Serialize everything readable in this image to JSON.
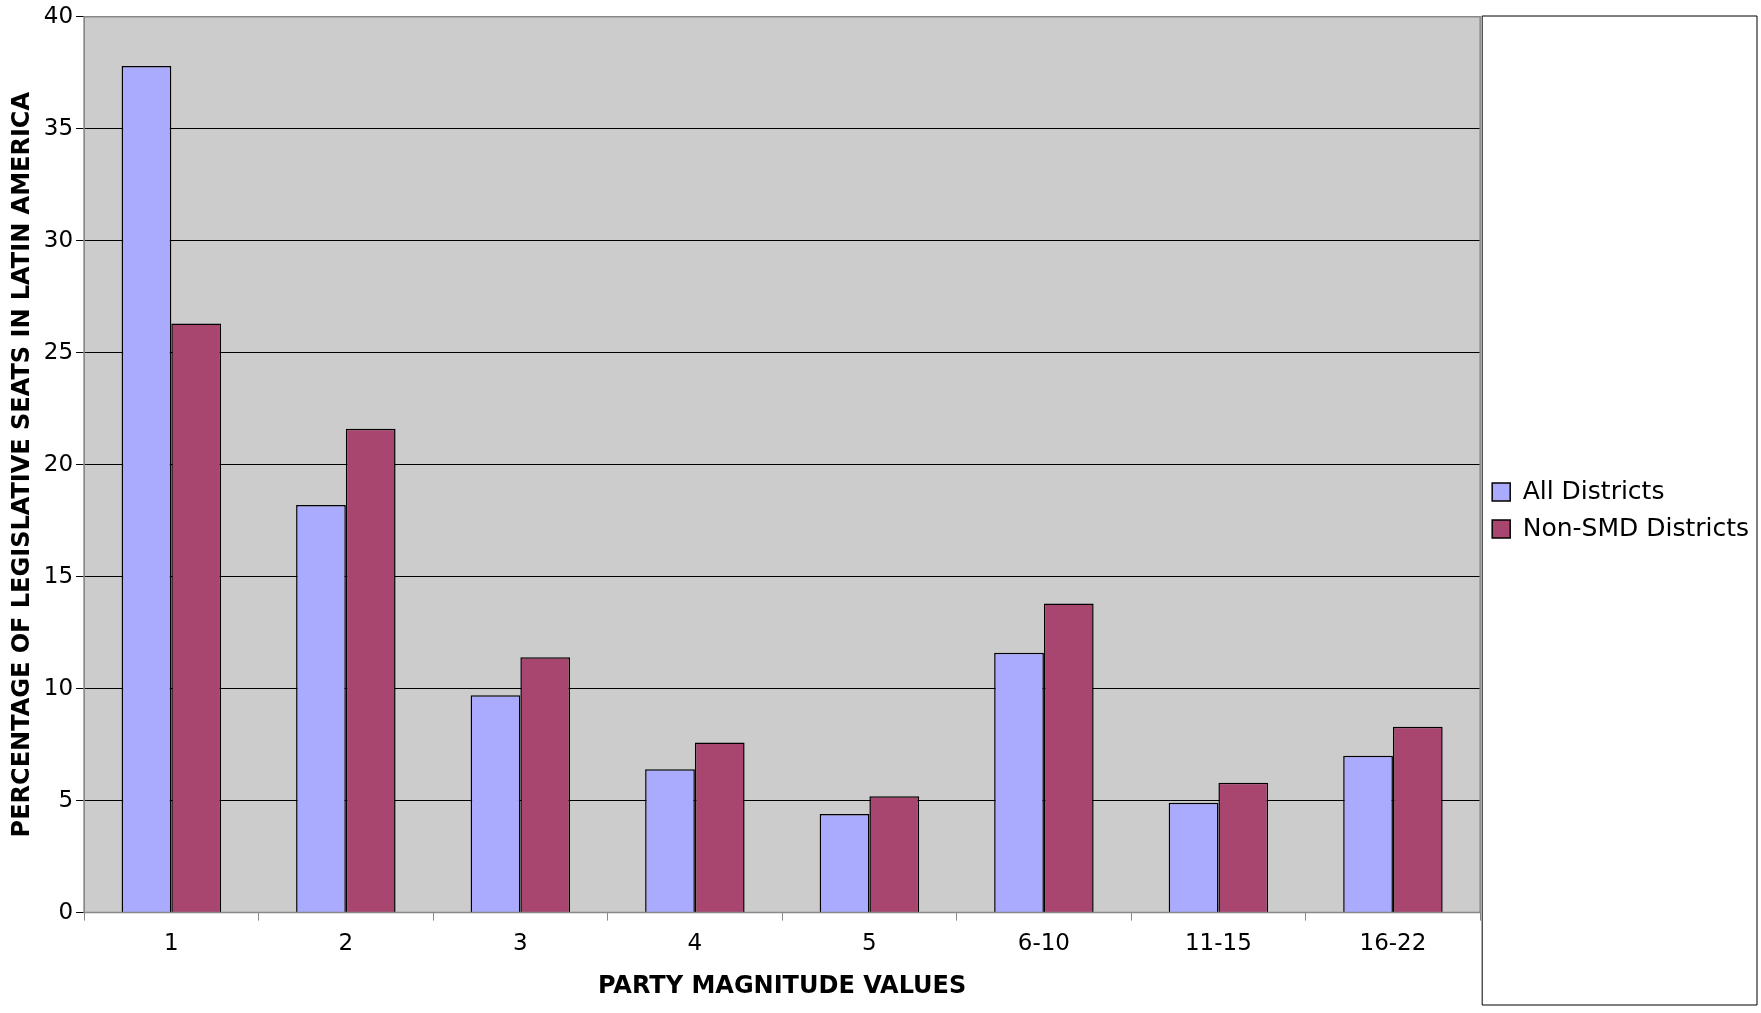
{
  "chart_data": {
    "type": "bar",
    "xlabel": "PARTY MAGNITUDE VALUES",
    "ylabel": "PERCENTAGE OF LEGISLATIVE SEATS IN LATIN AMERICA",
    "categories": [
      "1",
      "2",
      "3",
      "4",
      "5",
      "6-10",
      "11-15",
      "16-22"
    ],
    "series": [
      {
        "name": "All Districts",
        "color": "#aaaaff",
        "values": [
          37.8,
          18.2,
          9.7,
          6.4,
          4.4,
          11.6,
          4.9,
          7.0
        ]
      },
      {
        "name": "Non-SMD Districts",
        "color": "#a8466f",
        "values": [
          26.3,
          21.6,
          11.4,
          7.6,
          5.2,
          13.8,
          5.8,
          8.3
        ]
      }
    ],
    "ylim": [
      0,
      40
    ],
    "yticks": [
      0,
      5,
      10,
      15,
      20,
      25,
      30,
      35,
      40
    ],
    "grid": "y",
    "legend": "right"
  }
}
